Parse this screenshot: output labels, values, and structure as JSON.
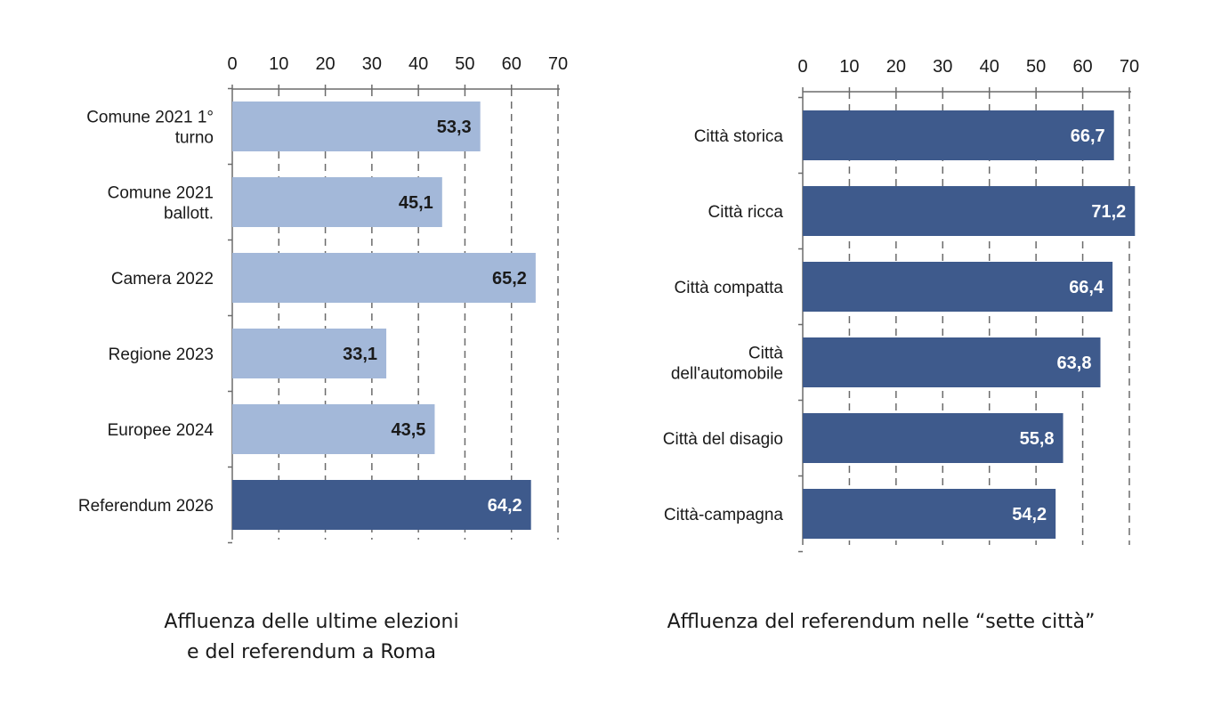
{
  "chart_data": [
    {
      "type": "bar",
      "orientation": "horizontal",
      "title": "Affluenza delle ultime elezioni e del referendum a Roma",
      "title_lines": [
        "Affluenza delle ultime elezioni",
        "e del referendum a Roma"
      ],
      "categories": [
        [
          "Comune 2021 1°",
          "turno"
        ],
        [
          "Comune 2021",
          "ballott."
        ],
        [
          "Camera 2022"
        ],
        [
          "Regione 2023"
        ],
        [
          "Europee 2024"
        ],
        [
          "Referendum 2026"
        ]
      ],
      "values": [
        53.3,
        45.1,
        65.2,
        33.1,
        43.5,
        64.2
      ],
      "value_labels": [
        "53,3",
        "45,1",
        "65,2",
        "33,1",
        "43,5",
        "64,2"
      ],
      "bar_colors": [
        "#a3b8d9",
        "#a3b8d9",
        "#a3b8d9",
        "#a3b8d9",
        "#a3b8d9",
        "#3e5a8c"
      ],
      "label_colors": [
        "#1a1a1a",
        "#1a1a1a",
        "#1a1a1a",
        "#1a1a1a",
        "#1a1a1a",
        "#ffffff"
      ],
      "xlim": [
        0,
        70
      ],
      "x_ticks": [
        "0",
        "10",
        "20",
        "30",
        "40",
        "50",
        "60",
        "70"
      ],
      "x_axis_position": "top",
      "grid": "vertical dashed",
      "legend": "none"
    },
    {
      "type": "bar",
      "orientation": "horizontal",
      "title": "Affluenza del referendum nelle “sette città”",
      "title_lines": [
        "Affluenza del referendum nelle “sette città”"
      ],
      "categories": [
        [
          "Città storica"
        ],
        [
          "Città ricca"
        ],
        [
          "Città compatta"
        ],
        [
          "Città",
          "dell'automobile"
        ],
        [
          "Città del disagio"
        ],
        [
          "Città-campagna"
        ]
      ],
      "values": [
        66.7,
        71.2,
        66.4,
        63.8,
        55.8,
        54.2
      ],
      "value_labels": [
        "66,7",
        "71,2",
        "66,4",
        "63,8",
        "55,8",
        "54,2"
      ],
      "bar_colors": [
        "#3e5a8c",
        "#3e5a8c",
        "#3e5a8c",
        "#3e5a8c",
        "#3e5a8c",
        "#3e5a8c"
      ],
      "label_colors": [
        "#ffffff",
        "#ffffff",
        "#ffffff",
        "#ffffff",
        "#ffffff",
        "#ffffff"
      ],
      "xlim": [
        0,
        70
      ],
      "x_ticks": [
        "0",
        "10",
        "20",
        "30",
        "40",
        "50",
        "60",
        "70"
      ],
      "x_axis_position": "top",
      "grid": "vertical dashed",
      "legend": "none"
    }
  ],
  "colors": {
    "axis": "#6b6b6b",
    "grid": "#6b6b6b",
    "text": "#1a1a1a"
  }
}
